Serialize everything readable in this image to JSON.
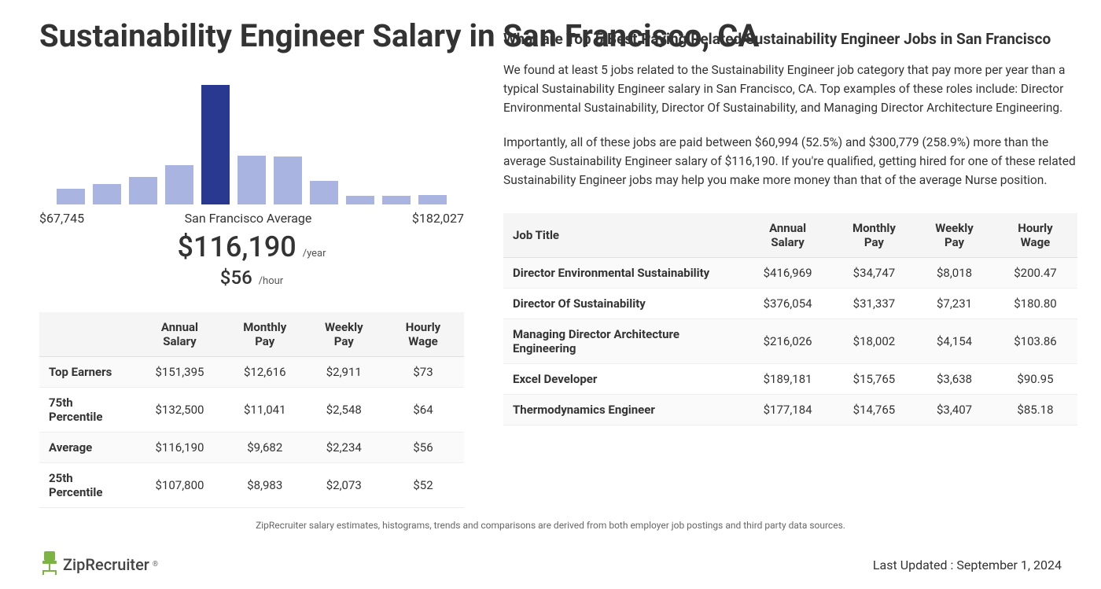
{
  "page_title": "Sustainability Engineer Salary in San Francisco, CA",
  "chart": {
    "type": "bar",
    "bar_heights_pct": [
      13,
      17,
      23,
      33,
      100,
      41,
      40,
      20,
      7,
      7,
      8
    ],
    "highlight_index": 4,
    "bar_color": "#aab4e0",
    "highlight_color": "#2a3990",
    "min_label": "$67,745",
    "center_label": "San Francisco Average",
    "max_label": "$182,027",
    "annual_salary": "$116,190",
    "annual_unit": "/year",
    "hourly_salary": "$56",
    "hourly_unit": "/hour"
  },
  "percentile_table": {
    "columns": [
      "",
      "Annual Salary",
      "Monthly Pay",
      "Weekly Pay",
      "Hourly Wage"
    ],
    "rows": [
      [
        "Top Earners",
        "$151,395",
        "$12,616",
        "$2,911",
        "$73"
      ],
      [
        "75th Percentile",
        "$132,500",
        "$11,041",
        "$2,548",
        "$64"
      ],
      [
        "Average",
        "$116,190",
        "$9,682",
        "$2,234",
        "$56"
      ],
      [
        "25th Percentile",
        "$107,800",
        "$8,983",
        "$2,073",
        "$52"
      ]
    ]
  },
  "related": {
    "title": "What are Top 5 Best Paying Related Sustainability Engineer Jobs in San Francisco",
    "para1": "We found at least 5 jobs related to the Sustainability Engineer job category that pay more per year than a typical Sustainability Engineer salary in San Francisco, CA. Top examples of these roles include: Director Environmental Sustainability, Director Of Sustainability, and Managing Director Architecture Engineering.",
    "para2": "Importantly, all of these jobs are paid between $60,994 (52.5%) and $300,779 (258.9%) more than the average Sustainability Engineer salary of $116,190. If you're qualified, getting hired for one of these related Sustainability Engineer jobs may help you make more money than that of the average Nurse position.",
    "columns": [
      "Job Title",
      "Annual Salary",
      "Monthly Pay",
      "Weekly Pay",
      "Hourly Wage"
    ],
    "rows": [
      [
        "Director Environmental Sustainability",
        "$416,969",
        "$34,747",
        "$8,018",
        "$200.47"
      ],
      [
        "Director Of Sustainability",
        "$376,054",
        "$31,337",
        "$7,231",
        "$180.80"
      ],
      [
        "Managing Director Architecture Engineering",
        "$216,026",
        "$18,002",
        "$4,154",
        "$103.86"
      ],
      [
        "Excel Developer",
        "$189,181",
        "$15,765",
        "$3,638",
        "$90.95"
      ],
      [
        "Thermodynamics Engineer",
        "$177,184",
        "$14,765",
        "$3,407",
        "$85.18"
      ]
    ]
  },
  "footer_note": "ZipRecruiter salary estimates, histograms, trends and comparisons are derived from both employer job postings and third party data sources.",
  "logo_text": "ZipRecruiter",
  "last_updated": "Last Updated : September 1, 2024"
}
